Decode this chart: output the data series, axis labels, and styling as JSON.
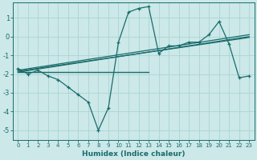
{
  "x": [
    0,
    1,
    2,
    3,
    4,
    5,
    6,
    7,
    8,
    9,
    10,
    11,
    12,
    13,
    14,
    15,
    16,
    17,
    18,
    19,
    20,
    21,
    22,
    23
  ],
  "y_main": [
    -1.7,
    -2.0,
    -1.8,
    -2.1,
    -2.3,
    -2.7,
    -3.1,
    -3.5,
    -5.0,
    -3.8,
    -0.3,
    1.3,
    1.5,
    1.6,
    -0.9,
    -0.5,
    -0.5,
    -0.3,
    -0.3,
    0.1,
    0.8,
    -0.4,
    -2.2,
    -2.1
  ],
  "flat_line_x": [
    0,
    13
  ],
  "flat_line_y": [
    -1.9,
    -1.9
  ],
  "trend1_x": [
    0,
    23
  ],
  "trend1_y": [
    -1.9,
    0.0
  ],
  "trend2_x": [
    0,
    23
  ],
  "trend2_y": [
    -1.85,
    -0.05
  ],
  "trend3_x": [
    0,
    23
  ],
  "trend3_y": [
    -1.8,
    0.1
  ],
  "ylim": [
    -5.5,
    1.8
  ],
  "xlim": [
    -0.5,
    23.5
  ],
  "yticks": [
    1,
    0,
    -1,
    -2,
    -3,
    -4,
    -5
  ],
  "xticks": [
    0,
    1,
    2,
    3,
    4,
    5,
    6,
    7,
    8,
    9,
    10,
    11,
    12,
    13,
    14,
    15,
    16,
    17,
    18,
    19,
    20,
    21,
    22,
    23
  ],
  "xlabel": "Humidex (Indice chaleur)",
  "bg_color": "#cce8e8",
  "line_color": "#1a6b6b",
  "grid_color": "#aad4d4"
}
